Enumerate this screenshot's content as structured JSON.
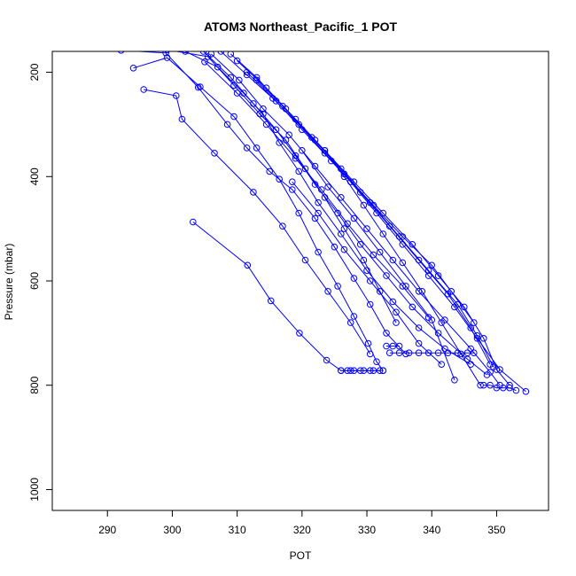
{
  "chart_data": {
    "type": "line",
    "title": "ATOM3 Northeast_Pacific_1 POT",
    "xlabel": "POT",
    "ylabel": "Pressure (mbar)",
    "xlim": [
      281.5,
      358
    ],
    "ylim": [
      1040,
      160
    ],
    "y_reversed": true,
    "grid": false,
    "legend": "none",
    "xticks": [
      290,
      300,
      310,
      320,
      330,
      340,
      350
    ],
    "yticks": [
      200,
      400,
      600,
      800,
      1000
    ],
    "colors": {
      "series": "#0000ff",
      "axis": "#000000"
    },
    "marker": "open-circle",
    "series": [
      {
        "x": [
          303.2,
          311.6,
          315.2,
          319.6,
          323.8,
          326.0,
          327.5,
          329.0,
          330.5,
          332.0
        ],
        "y": [
          487,
          570,
          638,
          700,
          752,
          772,
          772,
          772,
          772,
          772
        ]
      },
      {
        "x": [
          294.0,
          299.2,
          304.3,
          309.5,
          313.0,
          316.5,
          319.5,
          322.5,
          325.5,
          328.0,
          330.2,
          331.5,
          332.5
        ],
        "y": [
          192,
          172,
          228,
          285,
          345,
          405,
          470,
          545,
          610,
          668,
          720,
          755,
          772
        ]
      },
      {
        "x": [
          295.6,
          300.6,
          301.5,
          306.5,
          312.5,
          317.0,
          320.5,
          324.0,
          327.5,
          330.5
        ],
        "y": [
          233,
          245,
          290,
          355,
          430,
          495,
          560,
          620,
          680,
          740
        ]
      },
      {
        "x": [
          292.1,
          299.0,
          304.0,
          308.5,
          311.5,
          315.0,
          318.5,
          322.0,
          325.0,
          328.0,
          330.5,
          333.0,
          336.0
        ],
        "y": [
          158,
          163,
          229,
          300,
          345,
          390,
          425,
          480,
          535,
          595,
          645,
          700,
          740
        ]
      },
      {
        "x": [
          299.2,
          305.5,
          309.5,
          313.5,
          317.5,
          320.5,
          323.5,
          326.5,
          329.5,
          332.0,
          334.5
        ],
        "y": [
          157,
          170,
          225,
          280,
          330,
          385,
          440,
          500,
          560,
          620,
          680
        ]
      },
      {
        "x": [
          302.0,
          307.0,
          311.0,
          314.0,
          316.5,
          319.5,
          322.5,
          326.0,
          330.0,
          334.0,
          338.0,
          342.0,
          346.0
        ],
        "y": [
          160,
          190,
          240,
          280,
          335,
          390,
          450,
          510,
          580,
          640,
          690,
          730,
          760
        ]
      },
      {
        "x": [
          304.8,
          309.0,
          312.5,
          316.0,
          319.0,
          322.0,
          325.5,
          329.0,
          333.0,
          337.0,
          341.0,
          345.5,
          348.5
        ],
        "y": [
          160,
          210,
          260,
          310,
          360,
          415,
          470,
          530,
          590,
          650,
          700,
          750,
          780
        ]
      },
      {
        "x": [
          306.0,
          310.3,
          314.0,
          318.0,
          322.0,
          326.0,
          330.0,
          334.0,
          338.0,
          342.0,
          346.0,
          349.0,
          350.5
        ],
        "y": [
          165,
          215,
          270,
          320,
          380,
          440,
          500,
          560,
          620,
          675,
          730,
          775,
          800
        ]
      },
      {
        "x": [
          307.5,
          311.5,
          315.5,
          319.5,
          323.5,
          327.5,
          331.5,
          335.5,
          339.5,
          343.5,
          347.0,
          350.5,
          354.5
        ],
        "y": [
          160,
          205,
          250,
          300,
          355,
          410,
          470,
          530,
          590,
          650,
          710,
          770,
          812
        ]
      },
      {
        "x": [
          309.0,
          313.0,
          317.0,
          321.5,
          326.0,
          330.5,
          335.0,
          339.5,
          344.0,
          347.0,
          349.5
        ],
        "y": [
          165,
          210,
          265,
          325,
          385,
          450,
          515,
          580,
          645,
          705,
          765
        ]
      },
      {
        "x": [
          310.0,
          314.5,
          319.0,
          323.5,
          328.0,
          332.5,
          337.0,
          341.0,
          345.0,
          348.0,
          350.0,
          352.0
        ],
        "y": [
          178,
          230,
          290,
          350,
          410,
          470,
          530,
          590,
          650,
          710,
          770,
          800
        ]
      },
      {
        "x": [
          311.5,
          316.0,
          320.0,
          324.5,
          329.0,
          333.5,
          338.0,
          342.5,
          346.0,
          349.0
        ],
        "y": [
          200,
          255,
          310,
          370,
          430,
          495,
          560,
          625,
          690,
          760
        ]
      },
      {
        "x": [
          313.0,
          317.5,
          322.0,
          326.5,
          331.0,
          335.5,
          340.0,
          343.0,
          346.5
        ],
        "y": [
          215,
          270,
          330,
          395,
          455,
          515,
          570,
          620,
          680
        ]
      },
      {
        "x": [
          305.0,
          310.0,
          314.5,
          319.0,
          323.0,
          327.0,
          331.0,
          335.5,
          339.5
        ],
        "y": [
          180,
          240,
          300,
          365,
          425,
          490,
          550,
          610,
          670
        ]
      },
      {
        "x": [
          323.5,
          326.5,
          329.5,
          332.5,
          335.5,
          338.5,
          341.5,
          344.5,
          347.5
        ],
        "y": [
          350,
          400,
          455,
          510,
          565,
          620,
          680,
          740,
          800
        ]
      },
      {
        "x": [
          318.5,
          322.5,
          326.5,
          330.5,
          334.5,
          338.0,
          341.5
        ],
        "y": [
          410,
          470,
          540,
          600,
          660,
          720,
          760
        ]
      },
      {
        "x": [
          320.0,
          324.0,
          328.0,
          332.0,
          336.0,
          340.0,
          343.5
        ],
        "y": [
          350,
          420,
          480,
          545,
          610,
          675,
          790
        ]
      },
      {
        "x": [
          333.5,
          335.0,
          336.5,
          338.0,
          339.5,
          341.0,
          342.5,
          344.0,
          345.5,
          346.5
        ],
        "y": [
          738,
          738,
          738,
          738,
          738,
          738,
          738,
          738,
          738,
          738
        ]
      },
      {
        "x": [
          333.0,
          334.0,
          335.0
        ],
        "y": [
          725,
          725,
          725
        ]
      },
      {
        "x": [
          348.0,
          349.0,
          350.0,
          351.0,
          352.0,
          353.0
        ],
        "y": [
          800,
          800,
          805,
          805,
          805,
          810
        ]
      },
      {
        "x": [
          326.0,
          327.0,
          328.0,
          329.5,
          331.0,
          332.5
        ],
        "y": [
          772,
          772,
          772,
          772,
          772,
          772
        ]
      }
    ]
  }
}
